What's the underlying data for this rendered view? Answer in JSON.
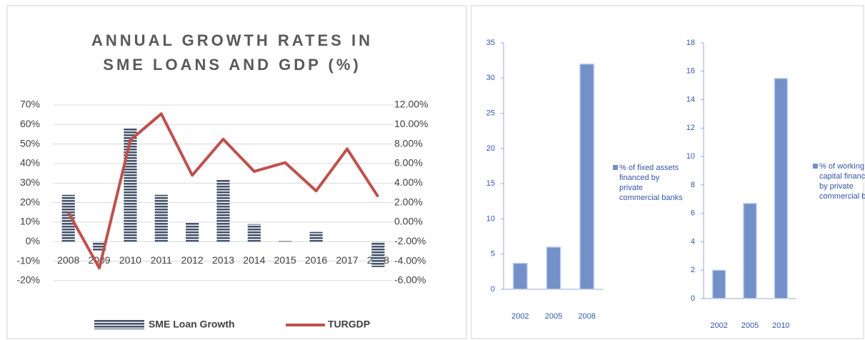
{
  "chart_data": [
    {
      "type": "combo",
      "title": "ANNUAL GROWTH RATES IN SME LOANS AND GDP (%)",
      "categories": [
        "2008",
        "2009",
        "2010",
        "2011",
        "2012",
        "2013",
        "2014",
        "2015",
        "2016",
        "2017",
        "2018"
      ],
      "series": [
        {
          "name": "SME Loan Growth",
          "type": "bar",
          "color": "#44546a",
          "values": [
            24,
            -5,
            58,
            24,
            10,
            32,
            9,
            0.3,
            5,
            0,
            -13
          ]
        },
        {
          "name": "TURGDP",
          "type": "line",
          "axis": "y2",
          "color": "#c0504d",
          "values": [
            1.0,
            -4.7,
            8.4,
            11.1,
            4.8,
            8.5,
            5.2,
            6.1,
            3.2,
            7.5,
            2.6
          ]
        }
      ],
      "ylim": [
        -20,
        70
      ],
      "yticks": [
        {
          "value": -20,
          "label": "-20%"
        },
        {
          "value": -10,
          "label": "-10%"
        },
        {
          "value": 0,
          "label": "0%"
        },
        {
          "value": 10,
          "label": "10%"
        },
        {
          "value": 20,
          "label": "20%"
        },
        {
          "value": 30,
          "label": "30%"
        },
        {
          "value": 40,
          "label": "40%"
        },
        {
          "value": 50,
          "label": "50%"
        },
        {
          "value": 60,
          "label": "60%"
        },
        {
          "value": 70,
          "label": "70%"
        }
      ],
      "y2lim": [
        -6,
        12
      ],
      "y2ticks": [
        {
          "value": -6,
          "label": "-6.00%"
        },
        {
          "value": -4,
          "label": "-4.00%"
        },
        {
          "value": -2,
          "label": "-2.00%"
        },
        {
          "value": 0,
          "label": "0.00%"
        },
        {
          "value": 2,
          "label": "2.00%"
        },
        {
          "value": 4,
          "label": "4.00%"
        },
        {
          "value": 6,
          "label": "6.00%"
        },
        {
          "value": 8,
          "label": "8.00%"
        },
        {
          "value": 10,
          "label": "10.00%"
        },
        {
          "value": 12,
          "label": "12.00%"
        }
      ],
      "legend": "bottom"
    },
    {
      "type": "bar",
      "categories": [
        "2002",
        "2005",
        "2008"
      ],
      "series": [
        {
          "name": "% of fixed assets financed by private commercial banks",
          "color": "#7390c8",
          "values": [
            3.7,
            6,
            32
          ]
        }
      ],
      "ylim": [
        0,
        35
      ],
      "yticks": [
        0,
        5,
        10,
        15,
        20,
        25,
        30,
        35
      ],
      "legend": "right"
    },
    {
      "type": "bar",
      "categories": [
        "2002",
        "2005",
        "2010"
      ],
      "series": [
        {
          "name": "% of working capital financed by private commercial banks",
          "color": "#7390c8",
          "values": [
            2,
            6.7,
            15.5
          ]
        }
      ],
      "ylim": [
        0,
        18
      ],
      "yticks": [
        0,
        2,
        4,
        6,
        8,
        10,
        12,
        14,
        16,
        18
      ],
      "legend": "right"
    }
  ]
}
